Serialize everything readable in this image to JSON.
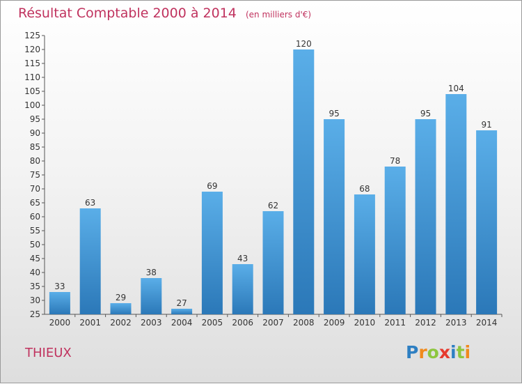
{
  "title": "Résultat Comptable 2000 à 2014",
  "subtitle": "(en milliers d'€)",
  "place": "THIEUX",
  "logo": {
    "letters": [
      "P",
      "r",
      "o",
      "x",
      "i",
      "t",
      "i"
    ],
    "colors": [
      "#2e7fc2",
      "#f08a1c",
      "#8dc63f",
      "#e63a2e",
      "#2e7fc2",
      "#8dc63f",
      "#f08a1c"
    ]
  },
  "colors": {
    "bar_top": "#5aaee8",
    "bar_bottom": "#2b78b8",
    "accent_text": "#c0325e"
  },
  "chart_data": {
    "type": "bar",
    "categories": [
      "2000",
      "2001",
      "2002",
      "2003",
      "2004",
      "2005",
      "2006",
      "2007",
      "2008",
      "2009",
      "2010",
      "2011",
      "2012",
      "2013",
      "2014"
    ],
    "values": [
      33,
      63,
      29,
      38,
      27,
      69,
      43,
      62,
      120,
      95,
      68,
      78,
      95,
      104,
      91
    ],
    "ylim": [
      25,
      125
    ],
    "yticks": [
      25,
      30,
      35,
      40,
      45,
      50,
      55,
      60,
      65,
      70,
      75,
      80,
      85,
      90,
      95,
      100,
      105,
      110,
      115,
      120,
      125
    ],
    "grid": false,
    "data_labels": true
  }
}
